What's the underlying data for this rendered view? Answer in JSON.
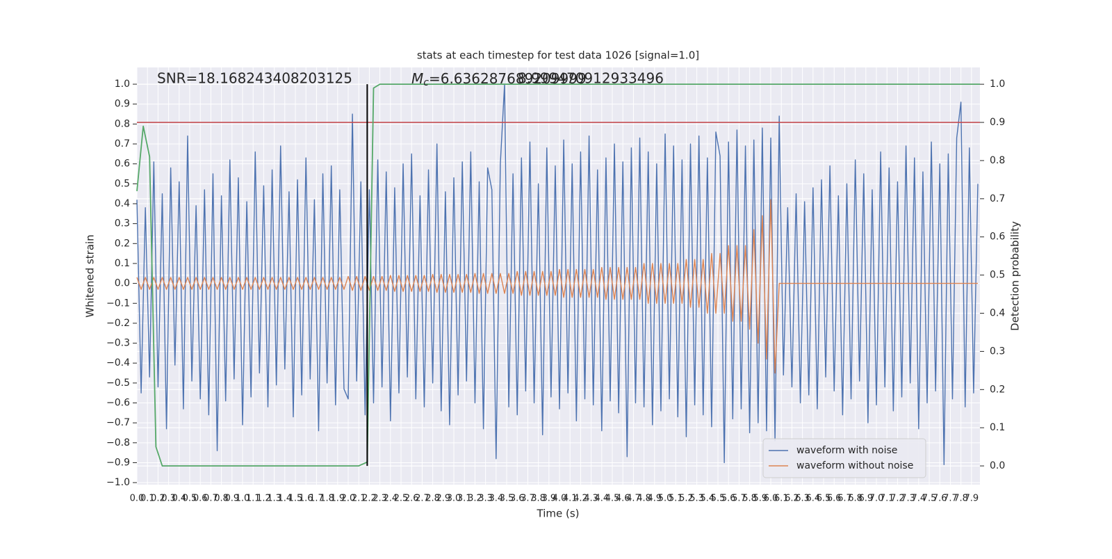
{
  "chart_data": {
    "type": "line",
    "title": "stats at each timestep for test data 1026 [signal=1.0]",
    "xlabel": "Time (s)",
    "ylabel": "Whitened strain",
    "y2label": "Detection probability",
    "annotations": [
      {
        "text": "SNR=18.168243408203125"
      },
      {
        "symbol": "M",
        "subscript": "c",
        "text": "=6.636287689209999"
      },
      {
        "text": "8.999470912933496"
      }
    ],
    "xlim": [
      0,
      7.98
    ],
    "ylim": [
      -1.01,
      1.084
    ],
    "y2lim": [
      -0.049,
      1.044
    ],
    "grid": true,
    "legend": "lower right",
    "threshold": {
      "y2": 0.9,
      "color": "#c44e52"
    },
    "marker_line": {
      "x": 2.18,
      "y2": [
        0,
        1
      ],
      "color": "#000000"
    },
    "xticks": [
      {
        "value": 0,
        "label": "0.0"
      },
      0.1,
      0.2,
      0.3,
      0.4,
      0.5,
      0.6,
      0.7,
      0.8,
      0.9,
      {
        "value": 1,
        "label": "1.0"
      },
      1.1,
      1.2,
      1.3,
      1.4,
      1.5,
      1.6,
      1.7,
      1.8,
      1.9,
      {
        "value": 2,
        "label": "2.0"
      },
      2.1,
      2.2,
      2.3,
      2.4,
      2.5,
      2.6,
      2.7,
      2.8,
      2.9,
      {
        "value": 3,
        "label": "3.0"
      },
      3.1,
      3.2,
      3.3,
      3.4,
      3.5,
      3.6,
      3.7,
      3.8,
      3.9,
      {
        "value": 4,
        "label": "4.0"
      },
      4.1,
      4.2,
      4.3,
      4.4,
      4.5,
      4.6,
      4.7,
      4.8,
      4.9,
      {
        "value": 5,
        "label": "5.0"
      },
      5.1,
      5.2,
      5.3,
      5.4,
      5.5,
      5.6,
      5.7,
      5.8,
      5.9,
      {
        "value": 6,
        "label": "6.0"
      },
      6.1,
      6.2,
      6.3,
      6.4,
      6.5,
      6.6,
      6.7,
      6.8,
      6.9,
      {
        "value": 7,
        "label": "7.0"
      },
      7.1,
      7.2,
      7.3,
      7.4,
      7.5,
      7.6,
      7.7,
      7.8,
      7.9
    ],
    "yticks": [
      {
        "value": -1,
        "label": "−1.0"
      },
      {
        "value": -0.9,
        "label": "−0.9"
      },
      {
        "value": -0.8,
        "label": "−0.8"
      },
      {
        "value": -0.7,
        "label": "−0.7"
      },
      {
        "value": -0.6,
        "label": "−0.6"
      },
      {
        "value": -0.5,
        "label": "−0.5"
      },
      {
        "value": -0.4,
        "label": "−0.4"
      },
      {
        "value": -0.3,
        "label": "−0.3"
      },
      {
        "value": -0.2,
        "label": "−0.2"
      },
      {
        "value": -0.1,
        "label": "−0.1"
      },
      {
        "value": 0,
        "label": "0.0"
      },
      0.1,
      0.2,
      0.3,
      0.4,
      0.5,
      0.6,
      0.7,
      0.8,
      0.9,
      {
        "value": 1,
        "label": "1.0"
      }
    ],
    "y2ticks": [
      {
        "value": 0,
        "label": "0.0"
      },
      0.1,
      0.2,
      0.3,
      0.4,
      0.5,
      0.6,
      0.7,
      0.8,
      0.9,
      {
        "value": 1,
        "label": "1.0"
      }
    ],
    "x": [
      0,
      0.04,
      0.08,
      0.12,
      0.16,
      0.2,
      0.24,
      0.28,
      0.32,
      0.36,
      0.4,
      0.44,
      0.48,
      0.52,
      0.56,
      0.6,
      0.64,
      0.68,
      0.72,
      0.76,
      0.8,
      0.84,
      0.88,
      0.92,
      0.96,
      1,
      1.04,
      1.08,
      1.12,
      1.16,
      1.2,
      1.24,
      1.28,
      1.32,
      1.36,
      1.4,
      1.44,
      1.48,
      1.52,
      1.56,
      1.6,
      1.64,
      1.68,
      1.72,
      1.76,
      1.8,
      1.84,
      1.88,
      1.92,
      1.96,
      2,
      2.04,
      2.08,
      2.12,
      2.16,
      2.2,
      2.24,
      2.28,
      2.32,
      2.36,
      2.4,
      2.44,
      2.48,
      2.52,
      2.56,
      2.6,
      2.64,
      2.68,
      2.72,
      2.76,
      2.8,
      2.84,
      2.88,
      2.92,
      2.96,
      3,
      3.04,
      3.08,
      3.12,
      3.16,
      3.2,
      3.24,
      3.28,
      3.32,
      3.36,
      3.4,
      3.44,
      3.48,
      3.52,
      3.56,
      3.6,
      3.64,
      3.68,
      3.72,
      3.76,
      3.8,
      3.84,
      3.88,
      3.92,
      3.96,
      4,
      4.04,
      4.08,
      4.12,
      4.16,
      4.2,
      4.24,
      4.28,
      4.32,
      4.36,
      4.4,
      4.44,
      4.48,
      4.52,
      4.56,
      4.6,
      4.64,
      4.68,
      4.72,
      4.76,
      4.8,
      4.84,
      4.88,
      4.92,
      4.96,
      5,
      5.04,
      5.08,
      5.12,
      5.16,
      5.2,
      5.24,
      5.28,
      5.32,
      5.36,
      5.4,
      5.44,
      5.48,
      5.52,
      5.56,
      5.6,
      5.64,
      5.68,
      5.72,
      5.76,
      5.8,
      5.84,
      5.88,
      5.92,
      5.96,
      6,
      6.04,
      6.08,
      6.12,
      6.16,
      6.2,
      6.24,
      6.28,
      6.32,
      6.36,
      6.4,
      6.44,
      6.48,
      6.52,
      6.56,
      6.6,
      6.64,
      6.68,
      6.72,
      6.76,
      6.8,
      6.84,
      6.88,
      6.92,
      6.96,
      7,
      7.04,
      7.08,
      7.12,
      7.16,
      7.2,
      7.24,
      7.28,
      7.32,
      7.36,
      7.4,
      7.44,
      7.48,
      7.52,
      7.56,
      7.6,
      7.64,
      7.68,
      7.72,
      7.76,
      7.8,
      7.84,
      7.88,
      7.92,
      7.96
    ],
    "series": [
      {
        "name": "waveform with noise",
        "color": "#4c72b0",
        "values": [
          0.42,
          -0.55,
          0.38,
          -0.47,
          0.61,
          -0.52,
          0.45,
          -0.73,
          0.58,
          -0.41,
          0.51,
          -0.63,
          0.74,
          -0.49,
          0.39,
          -0.58,
          0.47,
          -0.66,
          0.55,
          -0.84,
          0.44,
          -0.59,
          0.62,
          -0.48,
          0.53,
          -0.71,
          0.41,
          -0.57,
          0.66,
          -0.45,
          0.49,
          -0.62,
          0.57,
          -0.51,
          0.69,
          -0.43,
          0.46,
          -0.67,
          0.52,
          -0.56,
          0.63,
          -0.48,
          0.42,
          -0.74,
          0.55,
          -0.5,
          0.59,
          -0.61,
          0.47,
          -0.53,
          -0.58,
          0.85,
          -0.49,
          0.51,
          -0.66,
          0.47,
          -0.6,
          0.62,
          -0.52,
          0.56,
          -0.69,
          0.48,
          -0.55,
          0.6,
          -0.47,
          0.65,
          -0.58,
          0.44,
          -0.62,
          0.57,
          -0.5,
          0.7,
          -0.64,
          0.46,
          -0.71,
          0.53,
          -0.56,
          0.61,
          -0.49,
          0.66,
          -0.6,
          0.51,
          -0.73,
          0.58,
          0.47,
          -0.88,
          0.6,
          1.0,
          -0.62,
          0.55,
          -0.66,
          0.63,
          -0.54,
          0.71,
          -0.6,
          0.5,
          -0.76,
          0.68,
          -0.57,
          0.59,
          -0.63,
          0.72,
          -0.55,
          0.6,
          -0.69,
          0.66,
          -0.58,
          0.74,
          -0.61,
          0.57,
          -0.74,
          0.63,
          -0.59,
          0.7,
          -0.65,
          0.61,
          -0.87,
          0.68,
          -0.6,
          0.73,
          -0.62,
          0.66,
          -0.71,
          0.6,
          -0.64,
          0.75,
          -0.58,
          0.69,
          -0.67,
          0.62,
          -0.77,
          0.7,
          -0.61,
          0.74,
          -0.66,
          0.63,
          -0.72,
          0.76,
          0.64,
          -0.9,
          0.71,
          -0.68,
          0.77,
          -0.63,
          0.69,
          -0.75,
          0.72,
          -0.7,
          0.78,
          -0.74,
          0.73,
          -0.79,
          0.84,
          -0.46,
          0.38,
          -0.52,
          0.45,
          -0.6,
          0.41,
          -0.56,
          0.48,
          -0.63,
          0.52,
          -0.47,
          0.59,
          -0.54,
          0.44,
          -0.66,
          0.5,
          -0.58,
          0.62,
          -0.49,
          0.55,
          -0.7,
          0.47,
          -0.61,
          0.66,
          -0.52,
          0.58,
          -0.64,
          0.51,
          -0.57,
          0.69,
          -0.5,
          0.63,
          -0.73,
          0.56,
          -0.6,
          0.71,
          -0.54,
          0.6,
          -0.91,
          0.65,
          -0.58,
          0.73,
          0.91,
          -0.62,
          0.68,
          -0.55,
          0.5
        ]
      },
      {
        "name": "waveform without noise",
        "color": "#dd8452",
        "values": [
          0.03,
          -0.03,
          0.03,
          -0.03,
          0.03,
          -0.03,
          0.03,
          -0.03,
          0.03,
          -0.03,
          0.03,
          -0.03,
          0.03,
          -0.03,
          0.03,
          -0.03,
          0.03,
          -0.03,
          0.03,
          -0.03,
          0.03,
          -0.03,
          0.03,
          -0.03,
          0.03,
          -0.03,
          0.03,
          -0.03,
          0.03,
          -0.03,
          0.03,
          -0.03,
          0.03,
          -0.03,
          0.03,
          -0.03,
          0.03,
          -0.03,
          0.03,
          -0.03,
          0.03,
          -0.03,
          0.03,
          -0.03,
          0.03,
          -0.03,
          0.03,
          -0.03,
          0.03,
          -0.03,
          0.035,
          -0.035,
          0.035,
          -0.035,
          0.035,
          -0.035,
          0.035,
          -0.035,
          0.035,
          -0.035,
          0.04,
          -0.04,
          0.04,
          -0.04,
          0.04,
          -0.04,
          0.04,
          -0.04,
          0.04,
          -0.04,
          0.045,
          -0.045,
          0.045,
          -0.045,
          0.045,
          -0.045,
          0.045,
          -0.045,
          0.045,
          -0.045,
          0.05,
          -0.05,
          0.05,
          -0.05,
          0.05,
          -0.05,
          0.05,
          -0.05,
          0.05,
          -0.05,
          0.06,
          -0.06,
          0.06,
          -0.06,
          0.06,
          -0.06,
          0.06,
          -0.06,
          0.06,
          -0.06,
          0.07,
          -0.07,
          0.07,
          -0.07,
          0.07,
          -0.07,
          0.07,
          -0.07,
          0.07,
          -0.07,
          0.08,
          -0.08,
          0.08,
          -0.08,
          0.08,
          -0.08,
          0.08,
          -0.08,
          0.08,
          -0.08,
          0.1,
          -0.1,
          0.1,
          -0.1,
          0.1,
          -0.1,
          0.1,
          -0.1,
          0.1,
          -0.1,
          0.12,
          -0.12,
          0.12,
          -0.12,
          0.12,
          -0.15,
          0.15,
          -0.15,
          0.15,
          -0.15,
          0.19,
          -0.19,
          0.19,
          -0.19,
          0.19,
          -0.23,
          0.27,
          -0.3,
          0.34,
          -0.38,
          0.42,
          -0.45,
          0,
          0,
          0,
          0,
          0,
          0,
          0,
          0,
          0,
          0,
          0,
          0,
          0,
          0,
          0,
          0,
          0,
          0,
          0,
          0,
          0,
          0,
          0,
          0,
          0,
          0,
          0,
          0,
          0,
          0,
          0,
          0,
          0,
          0,
          0,
          0,
          0,
          0,
          0,
          0,
          0,
          0,
          0,
          0,
          0,
          0,
          0,
          0
        ]
      },
      {
        "axis": "y2",
        "color": "#55a868",
        "x": [
          0,
          0.06,
          0.12,
          0.18,
          0.24,
          2.1,
          2.18,
          2.24,
          2.3,
          7.98
        ],
        "values": [
          0.72,
          0.89,
          0.81,
          0.05,
          0,
          0,
          0.01,
          0.99,
          1,
          1
        ]
      }
    ]
  }
}
